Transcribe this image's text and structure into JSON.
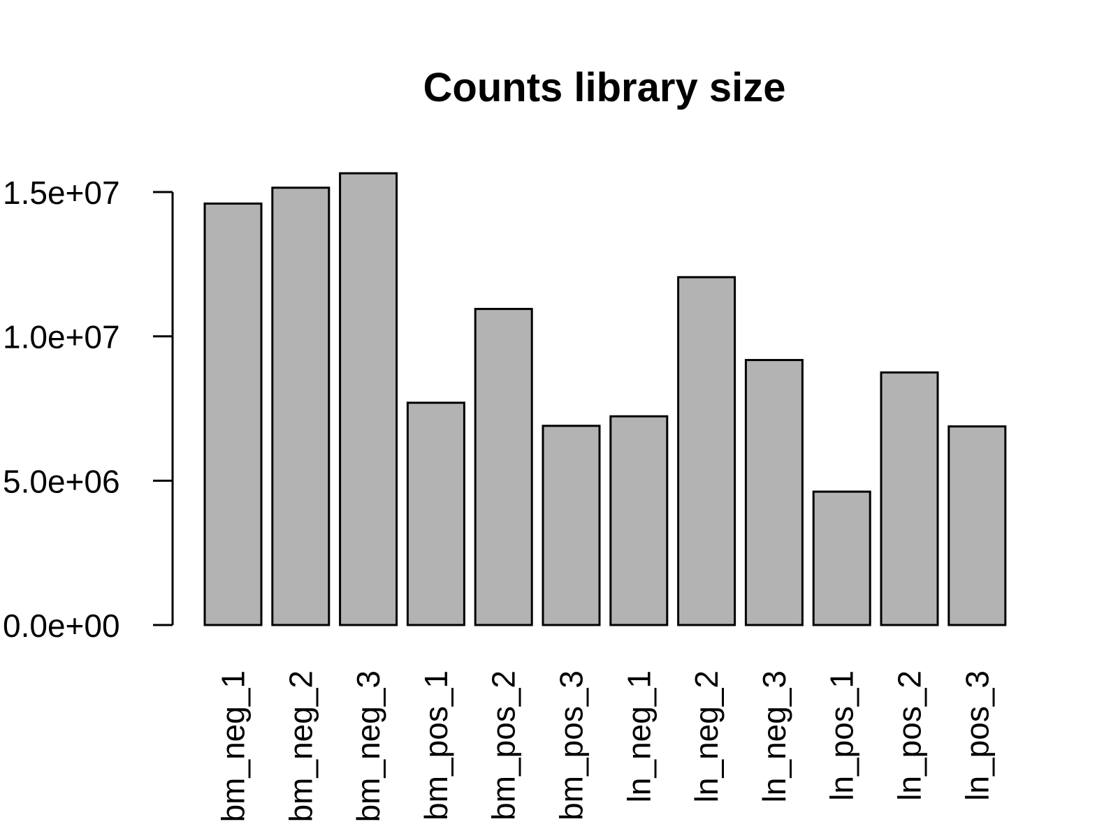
{
  "chart_data": {
    "type": "bar",
    "title": "Counts library size",
    "xlabel": "",
    "ylabel": "",
    "categories": [
      "bm_neg_1",
      "bm_neg_2",
      "bm_neg_3",
      "bm_pos_1",
      "bm_pos_2",
      "bm_pos_3",
      "ln_neg_1",
      "ln_neg_2",
      "ln_neg_3",
      "ln_pos_1",
      "ln_pos_2",
      "ln_pos_3"
    ],
    "values": [
      14600000,
      15150000,
      15650000,
      7700000,
      10950000,
      6900000,
      7230000,
      12050000,
      9180000,
      4620000,
      8750000,
      6880000
    ],
    "ylim": [
      0,
      15650000
    ],
    "yticks": [
      0,
      5000000,
      10000000,
      15000000
    ],
    "ytick_labels": [
      "0.0e+00",
      "5.0e+06",
      "1.0e+07",
      "1.5e+07"
    ],
    "grid": false,
    "legend": "none",
    "bar_color": "#b3b3b3",
    "edge_color": "#000000"
  }
}
